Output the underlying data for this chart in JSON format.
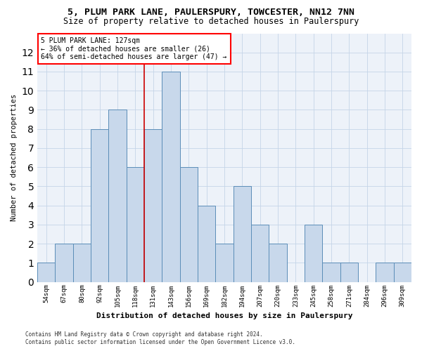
{
  "title1": "5, PLUM PARK LANE, PAULERSPURY, TOWCESTER, NN12 7NN",
  "title2": "Size of property relative to detached houses in Paulerspury",
  "xlabel": "Distribution of detached houses by size in Paulerspury",
  "ylabel": "Number of detached properties",
  "categories": [
    "54sqm",
    "67sqm",
    "80sqm",
    "92sqm",
    "105sqm",
    "118sqm",
    "131sqm",
    "143sqm",
    "156sqm",
    "169sqm",
    "182sqm",
    "194sqm",
    "207sqm",
    "220sqm",
    "233sqm",
    "245sqm",
    "258sqm",
    "271sqm",
    "284sqm",
    "296sqm",
    "309sqm"
  ],
  "values": [
    1,
    2,
    2,
    8,
    9,
    6,
    8,
    11,
    6,
    4,
    2,
    5,
    3,
    2,
    0,
    3,
    1,
    1,
    0,
    1,
    1
  ],
  "bar_color": "#c8d8eb",
  "bar_edge_color": "#5b8db8",
  "vline_color": "#cc0000",
  "vline_x": 5.5,
  "annotation_line1": "5 PLUM PARK LANE: 127sqm",
  "annotation_line2": "← 36% of detached houses are smaller (26)",
  "annotation_line3": "64% of semi-detached houses are larger (47) →",
  "ylim": [
    0,
    13
  ],
  "yticks": [
    0,
    1,
    2,
    3,
    4,
    5,
    6,
    7,
    8,
    9,
    10,
    11,
    12,
    13
  ],
  "grid_color": "#c5d5e8",
  "bg_color": "#edf2f9",
  "footnote1": "Contains HM Land Registry data © Crown copyright and database right 2024.",
  "footnote2": "Contains public sector information licensed under the Open Government Licence v3.0.",
  "title1_fontsize": 9.5,
  "title2_fontsize": 8.5,
  "xlabel_fontsize": 8,
  "ylabel_fontsize": 7.5,
  "tick_fontsize": 6.5,
  "annot_fontsize": 7,
  "footnote_fontsize": 5.5
}
